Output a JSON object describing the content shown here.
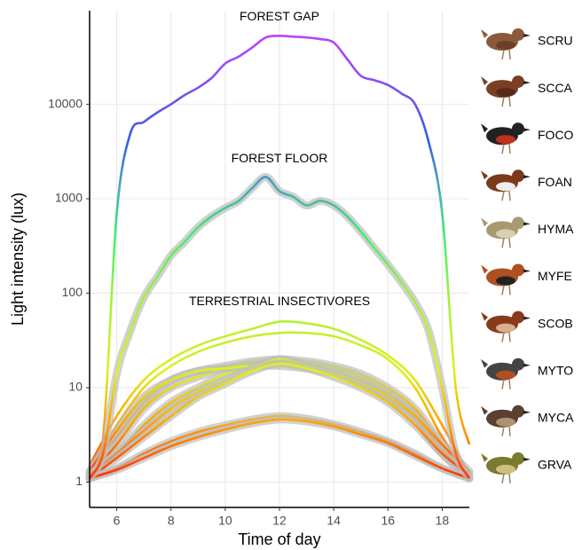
{
  "chart_data": {
    "type": "line",
    "yscale": "log",
    "xlabel": "Time of day",
    "ylabel": "Light intensity (lux)",
    "xlim": [
      5,
      19
    ],
    "ylim": [
      0.54,
      98000
    ],
    "xticks": [
      6,
      8,
      10,
      12,
      14,
      16,
      18
    ],
    "yticks": [
      1,
      10,
      100,
      1000,
      10000
    ],
    "grid": true,
    "color_stops": [
      {
        "value": 1,
        "color": "#ff2a00"
      },
      {
        "value": 4,
        "color": "#ffa000"
      },
      {
        "value": 15,
        "color": "#e0f020"
      },
      {
        "value": 100,
        "color": "#a0f040"
      },
      {
        "value": 400,
        "color": "#40f070"
      },
      {
        "value": 1500,
        "color": "#4aa0c0"
      },
      {
        "value": 4000,
        "color": "#3060e0"
      },
      {
        "value": 20000,
        "color": "#9050f0"
      },
      {
        "value": 60000,
        "color": "#c040ff"
      }
    ],
    "x": [
      5,
      5.5,
      6,
      6.5,
      7,
      7.5,
      8,
      8.5,
      9,
      9.5,
      10,
      10.5,
      11,
      11.5,
      12,
      12.5,
      13,
      13.5,
      14,
      14.5,
      15,
      15.5,
      16,
      16.5,
      17,
      17.5,
      18,
      18.5,
      19
    ],
    "series": [
      {
        "name": "FOREST GAP",
        "values": [
          1.2,
          3,
          700,
          4900,
          6500,
          8200,
          10000,
          12500,
          15000,
          19000,
          27000,
          32000,
          40000,
          51000,
          53000,
          52000,
          51000,
          49000,
          45000,
          30000,
          20000,
          18000,
          16000,
          13000,
          10000,
          4000,
          700,
          10,
          2.5
        ]
      },
      {
        "name": "FOREST FLOOR",
        "values": [
          1.1,
          2,
          14,
          40,
          90,
          150,
          250,
          350,
          500,
          650,
          800,
          950,
          1300,
          1700,
          1200,
          1050,
          850,
          950,
          850,
          650,
          450,
          300,
          200,
          130,
          80,
          40,
          10,
          2,
          1.1
        ]
      }
    ],
    "insectivores": {
      "name": "TERRESTRIAL INSECTIVORES",
      "x": [
        5,
        6,
        7,
        8,
        9,
        10,
        11,
        12,
        13,
        14,
        15,
        16,
        17,
        18,
        19
      ],
      "lines": [
        [
          1.5,
          5,
          12,
          20,
          28,
          35,
          42,
          50,
          48,
          42,
          32,
          22,
          12,
          4,
          1.2
        ],
        [
          1.4,
          4,
          10,
          17,
          24,
          30,
          35,
          38,
          38,
          35,
          28,
          20,
          10,
          3,
          1.2
        ],
        [
          1.3,
          3,
          7,
          12,
          15,
          17,
          19,
          20,
          19,
          17,
          14,
          10,
          6,
          2.5,
          1.1
        ],
        [
          1.2,
          2.5,
          6,
          10,
          13,
          16,
          18,
          19,
          18,
          16,
          13,
          9,
          5,
          2,
          1.1
        ],
        [
          1.2,
          2,
          4,
          7,
          10,
          14,
          17,
          18,
          17,
          15,
          12,
          8,
          4.5,
          2,
          1.2
        ],
        [
          1.3,
          3.5,
          8,
          12,
          15,
          16,
          17,
          17,
          16,
          14,
          11,
          8,
          5,
          2.2,
          1.1
        ],
        [
          1.2,
          2,
          3.5,
          6,
          9,
          12,
          16,
          20,
          17,
          14,
          11,
          8,
          5,
          2.5,
          1.3
        ],
        [
          1.1,
          1.8,
          3,
          5,
          8,
          11,
          15,
          18,
          16,
          13,
          10,
          7,
          4,
          2,
          1.2
        ],
        [
          1.1,
          1.4,
          2,
          2.7,
          3.4,
          4,
          4.6,
          5,
          4.7,
          4.1,
          3.4,
          2.7,
          2,
          1.4,
          1.1
        ],
        [
          1.1,
          1.35,
          1.8,
          2.4,
          3,
          3.6,
          4.2,
          4.6,
          4.4,
          3.9,
          3.2,
          2.6,
          1.9,
          1.4,
          1.1
        ]
      ]
    },
    "species": [
      "SCRU",
      "SCCA",
      "FOCO",
      "FOAN",
      "HYMA",
      "MYFE",
      "SCOB",
      "MYTO",
      "MYCA",
      "GRVA"
    ]
  }
}
